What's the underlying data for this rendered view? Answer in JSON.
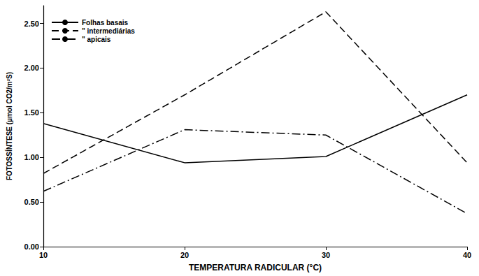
{
  "chart_data": {
    "type": "line",
    "x_label": "TEMPERATURA RADICULAR (°C)",
    "y_label": "FOTOSSÍNTESE (µmol CO2/m²S)",
    "x": [
      10,
      20,
      30,
      40
    ],
    "xlim": [
      10,
      40
    ],
    "xticks": [
      10,
      20,
      30,
      40
    ],
    "ylim": [
      0,
      2.7
    ],
    "yticks": [
      {
        "value": 0,
        "label": "0.00"
      },
      {
        "value": 0.5,
        "label": "0.50"
      },
      {
        "value": 1,
        "label": "1.00"
      },
      {
        "value": 1.5,
        "label": "1.50"
      },
      {
        "value": 2,
        "label": "2.00"
      },
      {
        "value": 2.5,
        "label": "2.50"
      }
    ],
    "grid": false,
    "legend": "upper left",
    "series": [
      {
        "name": "Folhas basais",
        "color": "#000000",
        "line_style": "solid",
        "values": [
          1.38,
          0.94,
          1.01,
          1.7
        ]
      },
      {
        "name": "\" intermediárias",
        "color": "#000000",
        "line_style": "dashed",
        "values": [
          0.82,
          1.7,
          2.63,
          0.94
        ]
      },
      {
        "name": "\" apicais",
        "color": "#000000",
        "line_style": "dashdot",
        "values": [
          0.62,
          1.31,
          1.25,
          0.37
        ]
      }
    ]
  }
}
